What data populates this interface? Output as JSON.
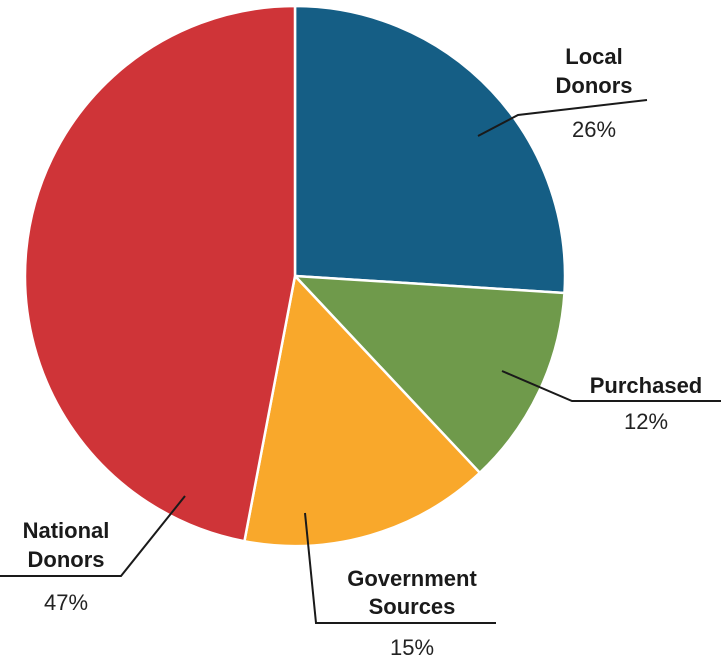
{
  "chart_data": {
    "type": "pie",
    "start_angle_deg": 0,
    "direction": "clockwise",
    "slice_border_color": "#ffffff",
    "slices": [
      {
        "label_lines": [
          "Local",
          "Donors"
        ],
        "value": 26,
        "value_label": "26%",
        "color": "#155e85"
      },
      {
        "label_lines": [
          "Purchased"
        ],
        "value": 12,
        "value_label": "12%",
        "color": "#6f9a4b"
      },
      {
        "label_lines": [
          "Government",
          "Sources"
        ],
        "value": 15,
        "value_label": "15%",
        "color": "#f9a82b"
      },
      {
        "label_lines": [
          "National",
          "Donors"
        ],
        "value": 47,
        "value_label": "47%",
        "color": "#cf3438"
      }
    ]
  }
}
